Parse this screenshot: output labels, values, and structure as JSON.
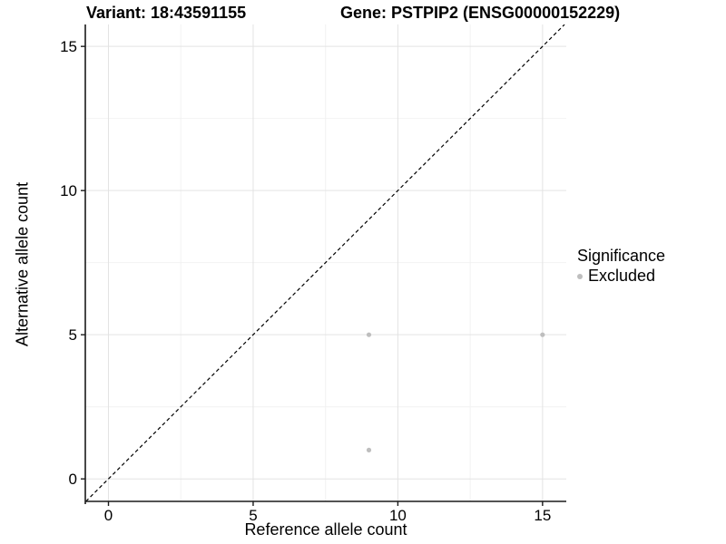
{
  "header": {
    "title_left": "Variant: 18:43591155",
    "title_right": "Gene: PSTPIP2 (ENSG00000152229)"
  },
  "chart_data": {
    "type": "scatter",
    "title_left": "Variant: 18:43591155",
    "title_right": "Gene: PSTPIP2 (ENSG00000152229)",
    "xlabel": "Reference allele count",
    "ylabel": "Alternative allele count",
    "xlim": [
      -0.8,
      15.82
    ],
    "ylim": [
      -0.78,
      15.76
    ],
    "x_ticks": [
      0,
      5,
      10,
      15
    ],
    "y_ticks": [
      0,
      5,
      10,
      15
    ],
    "x_minor_ticks": [
      2.5,
      7.5,
      12.5
    ],
    "y_minor_ticks": [
      2.5,
      7.5,
      12.5
    ],
    "grid": true,
    "series": [
      {
        "name": "Excluded",
        "marker": "circle",
        "color": "#bebebe",
        "points": [
          [
            9,
            5
          ],
          [
            15,
            5
          ],
          [
            9,
            1
          ]
        ]
      }
    ],
    "reference_line": {
      "type": "identity",
      "slope": 1,
      "intercept": 0,
      "style": "dashed",
      "color": "#000000"
    },
    "legend": {
      "title": "Significance",
      "position": "right",
      "entries": [
        {
          "label": "Excluded",
          "color": "#bebebe",
          "marker": "circle"
        }
      ]
    },
    "colors": {
      "background": "#ffffff",
      "grid_major": "#e3e3e3",
      "grid_minor": "#f2f2f2",
      "axis_line": "#1a1a1a",
      "tick": "#1a1a1a",
      "tick_label": "#000000",
      "point": "#bebebe"
    }
  }
}
